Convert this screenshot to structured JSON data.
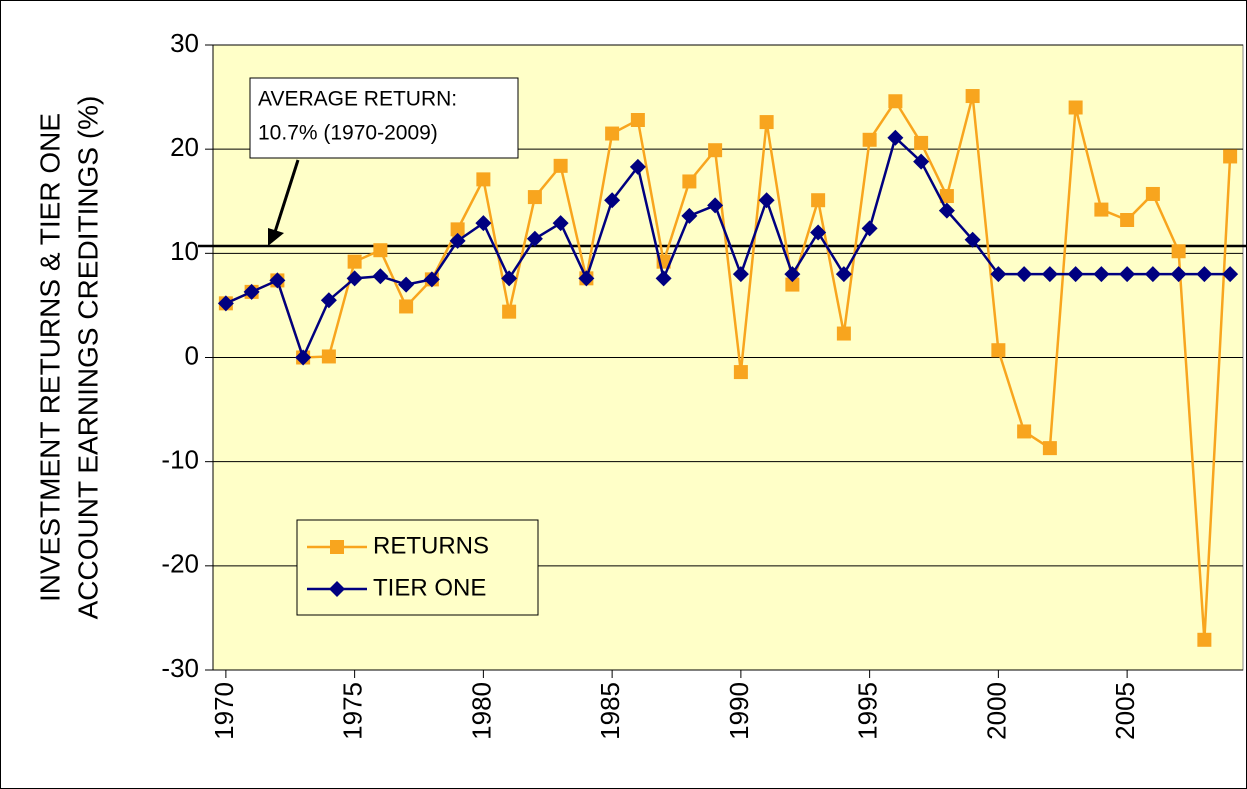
{
  "chart_data": {
    "type": "line",
    "y_label": [
      "INVESTMENT RETURNS & TIER ONE",
      "ACCOUNT EARNINGS CREDITINGS (%)"
    ],
    "x": [
      1970,
      1971,
      1972,
      1973,
      1974,
      1975,
      1976,
      1977,
      1978,
      1979,
      1980,
      1981,
      1982,
      1983,
      1984,
      1985,
      1986,
      1987,
      1988,
      1989,
      1990,
      1991,
      1992,
      1993,
      1994,
      1995,
      1996,
      1997,
      1998,
      1999,
      2000,
      2001,
      2002,
      2003,
      2004,
      2005,
      2006,
      2007,
      2008,
      2009
    ],
    "series": [
      {
        "name": "RETURNS",
        "color": "#f8a51e",
        "marker": "square",
        "values": [
          5.2,
          6.3,
          7.4,
          0,
          0.1,
          9.2,
          10.3,
          4.9,
          7.5,
          12.3,
          17.1,
          4.4,
          15.4,
          18.4,
          7.6,
          21.5,
          22.8,
          9.2,
          16.9,
          19.9,
          -1.4,
          22.6,
          7.0,
          15.1,
          2.3,
          20.9,
          24.6,
          20.6,
          15.5,
          25.1,
          0.7,
          -7.1,
          -8.7,
          24.0,
          14.2,
          13.2,
          15.7,
          10.2,
          -27.1,
          19.3
        ]
      },
      {
        "name": "TIER ONE",
        "color": "#000080",
        "marker": "diamond",
        "values": [
          5.2,
          6.3,
          7.4,
          0,
          5.5,
          7.6,
          7.8,
          7.0,
          7.5,
          11.2,
          12.9,
          7.6,
          11.4,
          12.9,
          7.6,
          15.1,
          18.3,
          7.6,
          13.6,
          14.6,
          8.0,
          15.1,
          8.0,
          12.0,
          8.0,
          12.4,
          21.1,
          18.8,
          14.1,
          11.3,
          8.0,
          8.0,
          8.0,
          8.0,
          8.0,
          8.0,
          8.0,
          8.0,
          8.0,
          8.0
        ]
      }
    ],
    "xlim": [
      1969.5,
      2009.5
    ],
    "xticks": [
      1970,
      1975,
      1980,
      1985,
      1990,
      1995,
      2000,
      2005
    ],
    "ylim": [
      -30,
      30
    ],
    "yticks": [
      -30,
      -20,
      -10,
      0,
      10,
      20,
      30
    ],
    "grid": true,
    "reference_line": {
      "value": 10.7,
      "annotation": [
        "AVERAGE RETURN:",
        "10.7% (1970-2009)"
      ]
    },
    "legend": "lower left",
    "background": "#ffffc8"
  }
}
